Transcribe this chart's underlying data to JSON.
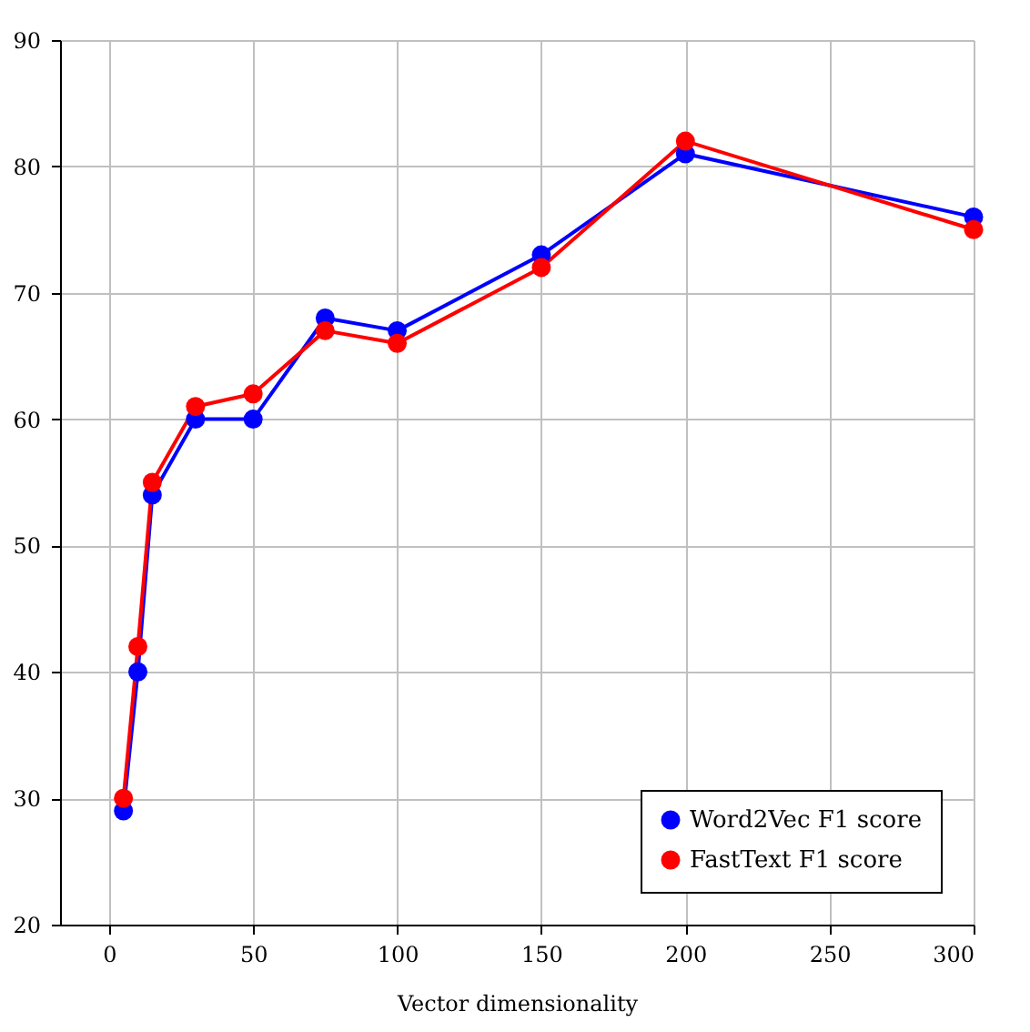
{
  "chart_data": {
    "type": "line",
    "xlabel": "Vector dimensionality",
    "x": [
      5,
      10,
      15,
      30,
      50,
      75,
      100,
      150,
      200,
      300
    ],
    "series": [
      {
        "name": "Word2Vec F1 score",
        "color": "#0000ff",
        "values": [
          29,
          40,
          54,
          60,
          60,
          68,
          67,
          73,
          81,
          76
        ]
      },
      {
        "name": "FastText F1 score",
        "color": "#ff0000",
        "values": [
          30,
          42,
          55,
          61,
          62,
          67,
          66,
          72,
          82,
          75
        ]
      }
    ],
    "xlim": [
      -17,
      300
    ],
    "xticks": [
      0,
      50,
      100,
      150,
      200,
      250,
      300
    ],
    "ylim": [
      20,
      90
    ],
    "yticks": [
      20,
      30,
      40,
      50,
      60,
      70,
      80,
      90
    ],
    "grid": true,
    "legend": "bottom right",
    "marker": "circle",
    "line_style": "solid"
  }
}
